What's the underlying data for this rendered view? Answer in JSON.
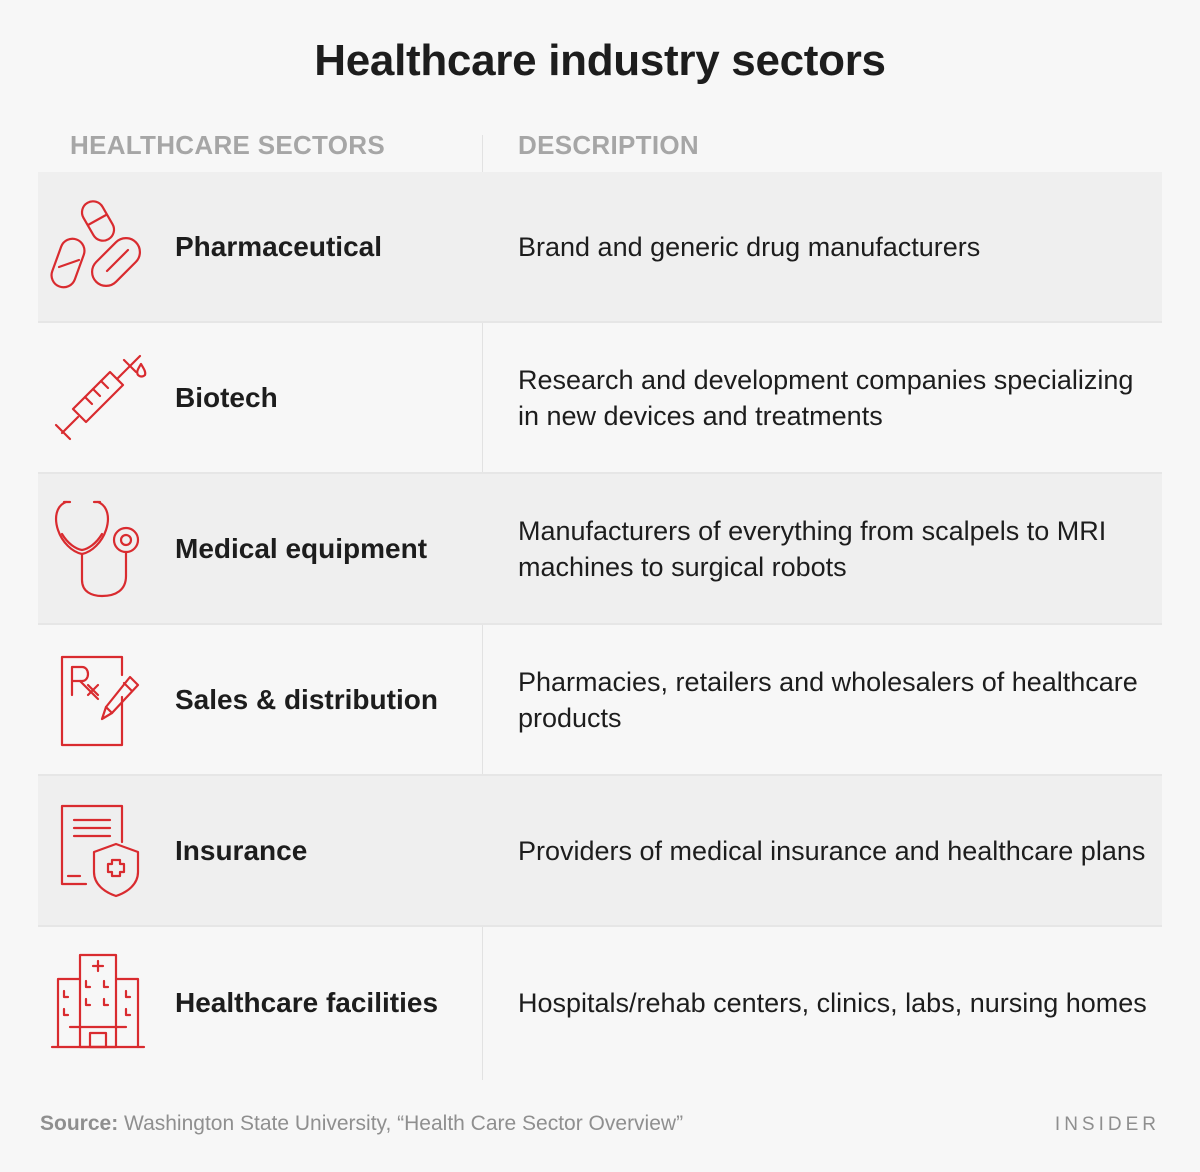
{
  "title": "Healthcare industry sectors",
  "headers": {
    "sectors": "HEALTHCARE SECTORS",
    "description": "DESCRIPTION"
  },
  "rows": [
    {
      "icon": "pills-icon",
      "sector": "Pharmaceutical",
      "description": "Brand and generic drug manufacturers"
    },
    {
      "icon": "syringe-icon",
      "sector": "Biotech",
      "description": "Research and development companies specializing in new devices and treatments"
    },
    {
      "icon": "stethoscope-icon",
      "sector": "Medical equipment",
      "description": "Manufacturers of everything from scalpels to MRI machines to surgical robots"
    },
    {
      "icon": "prescription-icon",
      "sector": "Sales & distribution",
      "description": "Pharmacies, retailers and wholesalers of healthcare products"
    },
    {
      "icon": "insurance-document-icon",
      "sector": "Insurance",
      "description": "Providers of medical insurance and healthcare plans"
    },
    {
      "icon": "hospital-icon",
      "sector": "Healthcare facilities",
      "description": "Hospitals/rehab centers, clinics, labs, nursing homes"
    }
  ],
  "footer": {
    "source_label": "Source:",
    "source_text": "Washington State University, “Health Care Sector Overview”",
    "brand": "INSIDER"
  },
  "colors": {
    "icon_accent": "#d92b2f",
    "text": "#1d1d1d",
    "muted": "#a6a6a6",
    "row_shade": "#efefef"
  },
  "chart_data": {
    "type": "table",
    "title": "Healthcare industry sectors",
    "columns": [
      "HEALTHCARE SECTORS",
      "DESCRIPTION"
    ],
    "rows": [
      [
        "Pharmaceutical",
        "Brand and generic drug manufacturers"
      ],
      [
        "Biotech",
        "Research and development companies specializing in new devices and treatments"
      ],
      [
        "Medical equipment",
        "Manufacturers of everything from scalpels to MRI machines to surgical robots"
      ],
      [
        "Sales & distribution",
        "Pharmacies, retailers and wholesalers of healthcare products"
      ],
      [
        "Insurance",
        "Providers of medical insurance and healthcare plans"
      ],
      [
        "Healthcare facilities",
        "Hospitals/rehab centers, clinics, labs, nursing homes"
      ]
    ]
  }
}
